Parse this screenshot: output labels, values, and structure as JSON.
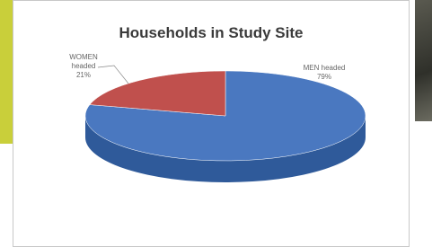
{
  "chart_data": {
    "type": "pie",
    "title": "Households in Study Site",
    "categories": [
      "MEN headed",
      "WOMEN headed"
    ],
    "values": [
      79,
      21
    ],
    "value_labels": [
      "79%",
      "21%"
    ],
    "colors": [
      "#4a78c0",
      "#c0504d"
    ]
  }
}
